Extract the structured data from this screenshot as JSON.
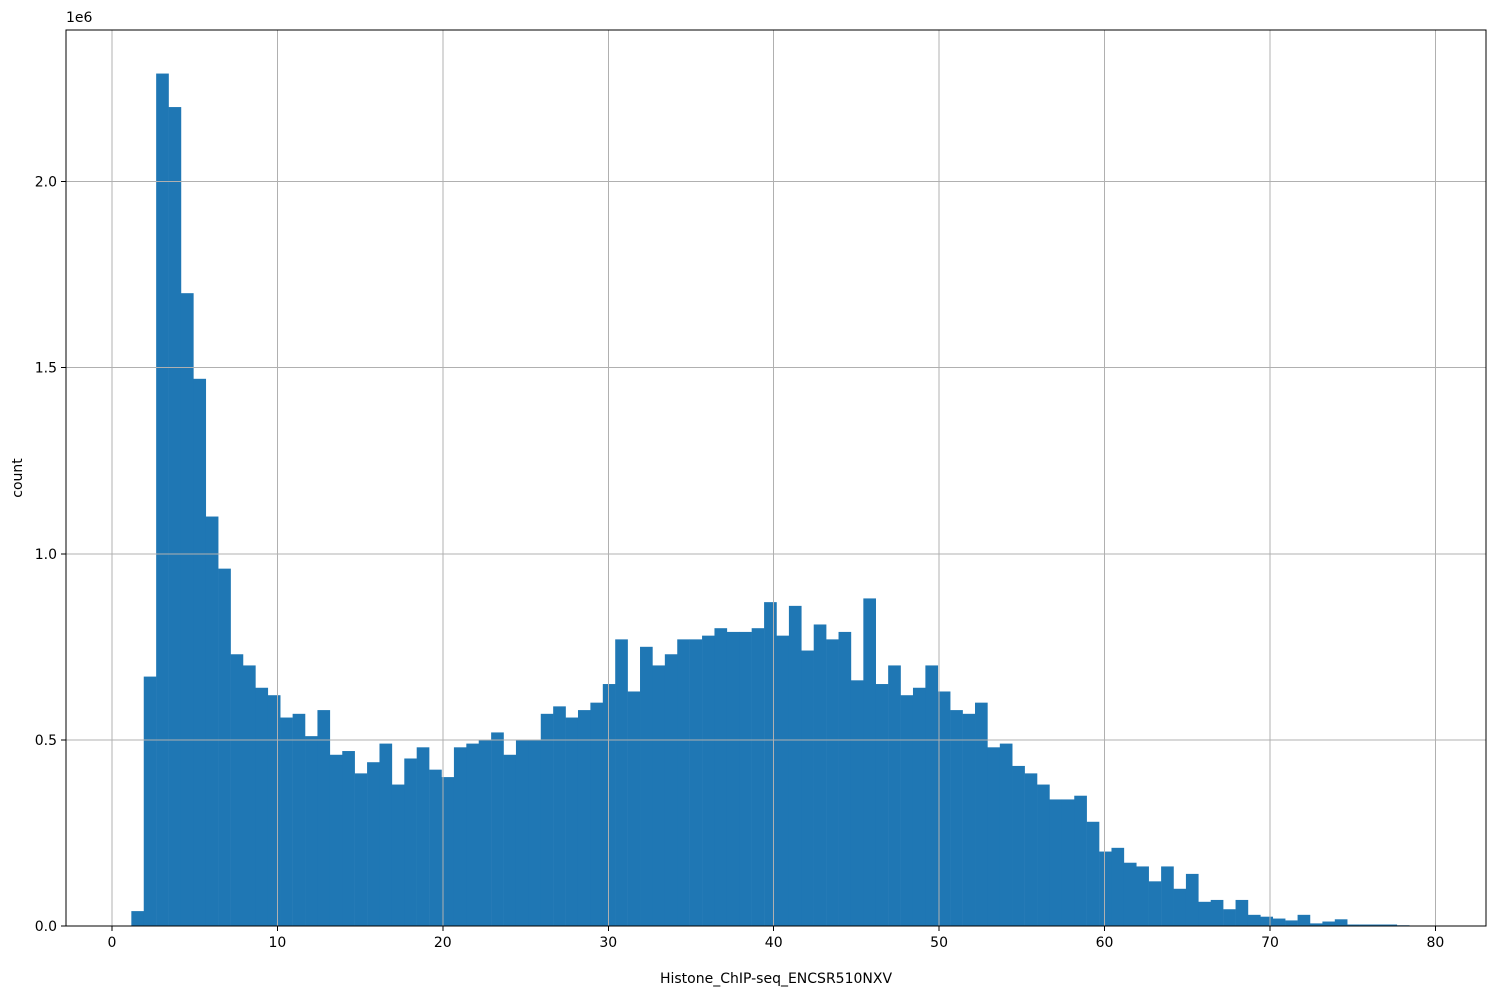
{
  "chart_data": {
    "type": "bar",
    "subtype": "histogram",
    "title": "",
    "xlabel": "Histone_ChIP-seq_ENCSR510NXV",
    "ylabel": "count",
    "offset_text": "1e6",
    "grid": true,
    "legend_position": "none",
    "bar_color": "#1f77b4",
    "grid_color": "#b0b0b0",
    "axis_color": "#000000",
    "background_color": "#ffffff",
    "bin_start": 1.17,
    "bin_width": 0.75,
    "counts": [
      40000,
      670000,
      2290000,
      2200000,
      1700000,
      1470000,
      1100000,
      960000,
      730000,
      700000,
      640000,
      620000,
      560000,
      570000,
      510000,
      580000,
      460000,
      470000,
      410000,
      440000,
      490000,
      380000,
      450000,
      480000,
      420000,
      400000,
      480000,
      490000,
      500000,
      520000,
      460000,
      500000,
      500000,
      570000,
      590000,
      560000,
      580000,
      600000,
      650000,
      770000,
      630000,
      750000,
      700000,
      730000,
      770000,
      770000,
      780000,
      800000,
      790000,
      790000,
      800000,
      870000,
      780000,
      860000,
      740000,
      810000,
      770000,
      790000,
      660000,
      880000,
      650000,
      700000,
      620000,
      640000,
      700000,
      630000,
      580000,
      570000,
      600000,
      480000,
      490000,
      430000,
      410000,
      380000,
      340000,
      340000,
      350000,
      280000,
      200000,
      210000,
      170000,
      160000,
      120000,
      160000,
      100000,
      140000,
      65000,
      70000,
      45000,
      70000,
      30000,
      25000,
      20000,
      15000,
      30000,
      7000,
      12000,
      18000,
      4000,
      4000,
      4000,
      4000,
      2000,
      1000
    ],
    "xlim": [
      -2.78,
      83.06
    ],
    "ylim": [
      0,
      2407000
    ],
    "xtick_values": [
      0,
      10,
      20,
      30,
      40,
      50,
      60,
      70,
      80
    ],
    "xtick_labels": [
      "0",
      "10",
      "20",
      "30",
      "40",
      "50",
      "60",
      "70",
      "80"
    ],
    "ytick_values": [
      0,
      500000,
      1000000,
      1500000,
      2000000
    ],
    "ytick_labels": [
      "0.0",
      "0.5",
      "1.0",
      "1.5",
      "2.0"
    ]
  }
}
